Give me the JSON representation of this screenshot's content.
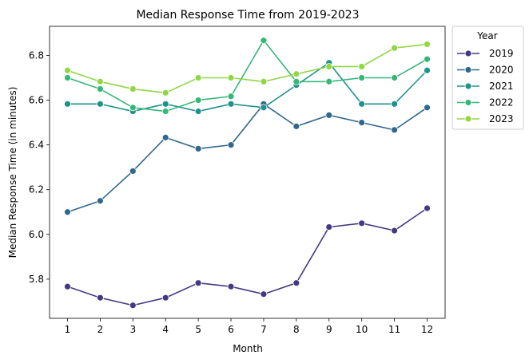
{
  "chart_data": {
    "type": "line",
    "title": "Median Response Time from 2019-2023",
    "xlabel": "Month",
    "ylabel": "Median Response Time (in minutes)",
    "x": [
      1,
      2,
      3,
      4,
      5,
      6,
      7,
      8,
      9,
      10,
      11,
      12
    ],
    "xticks": [
      "1",
      "2",
      "3",
      "4",
      "5",
      "6",
      "7",
      "8",
      "9",
      "10",
      "11",
      "12"
    ],
    "yticks": [
      "5.8",
      "6.0",
      "6.2",
      "6.4",
      "6.6",
      "6.8"
    ],
    "ylim": [
      5.625,
      6.93
    ],
    "xlim": [
      0.45,
      12.55
    ],
    "grid": false,
    "marker": "circle",
    "legend": {
      "title": "Year",
      "placement": "outside-top-right"
    },
    "series": [
      {
        "name": "2019",
        "color": "#433982",
        "values": [
          5.767,
          5.717,
          5.683,
          5.717,
          5.783,
          5.767,
          5.733,
          5.783,
          6.033,
          6.05,
          6.017,
          6.117
        ]
      },
      {
        "name": "2020",
        "color": "#30678d",
        "values": [
          6.1,
          6.15,
          6.283,
          6.433,
          6.383,
          6.4,
          6.583,
          6.483,
          6.533,
          6.5,
          6.467,
          6.567
        ]
      },
      {
        "name": "2021",
        "color": "#20928c",
        "values": [
          6.583,
          6.583,
          6.55,
          6.583,
          6.55,
          6.583,
          6.567,
          6.667,
          6.767,
          6.583,
          6.583,
          6.733
        ]
      },
      {
        "name": "2022",
        "color": "#35b779",
        "values": [
          6.7,
          6.65,
          6.567,
          6.55,
          6.6,
          6.617,
          6.867,
          6.683,
          6.683,
          6.7,
          6.7,
          6.783
        ]
      },
      {
        "name": "2023",
        "color": "#90d743",
        "values": [
          6.733,
          6.683,
          6.65,
          6.633,
          6.7,
          6.7,
          6.683,
          6.717,
          6.75,
          6.75,
          6.833,
          6.85
        ]
      }
    ]
  }
}
